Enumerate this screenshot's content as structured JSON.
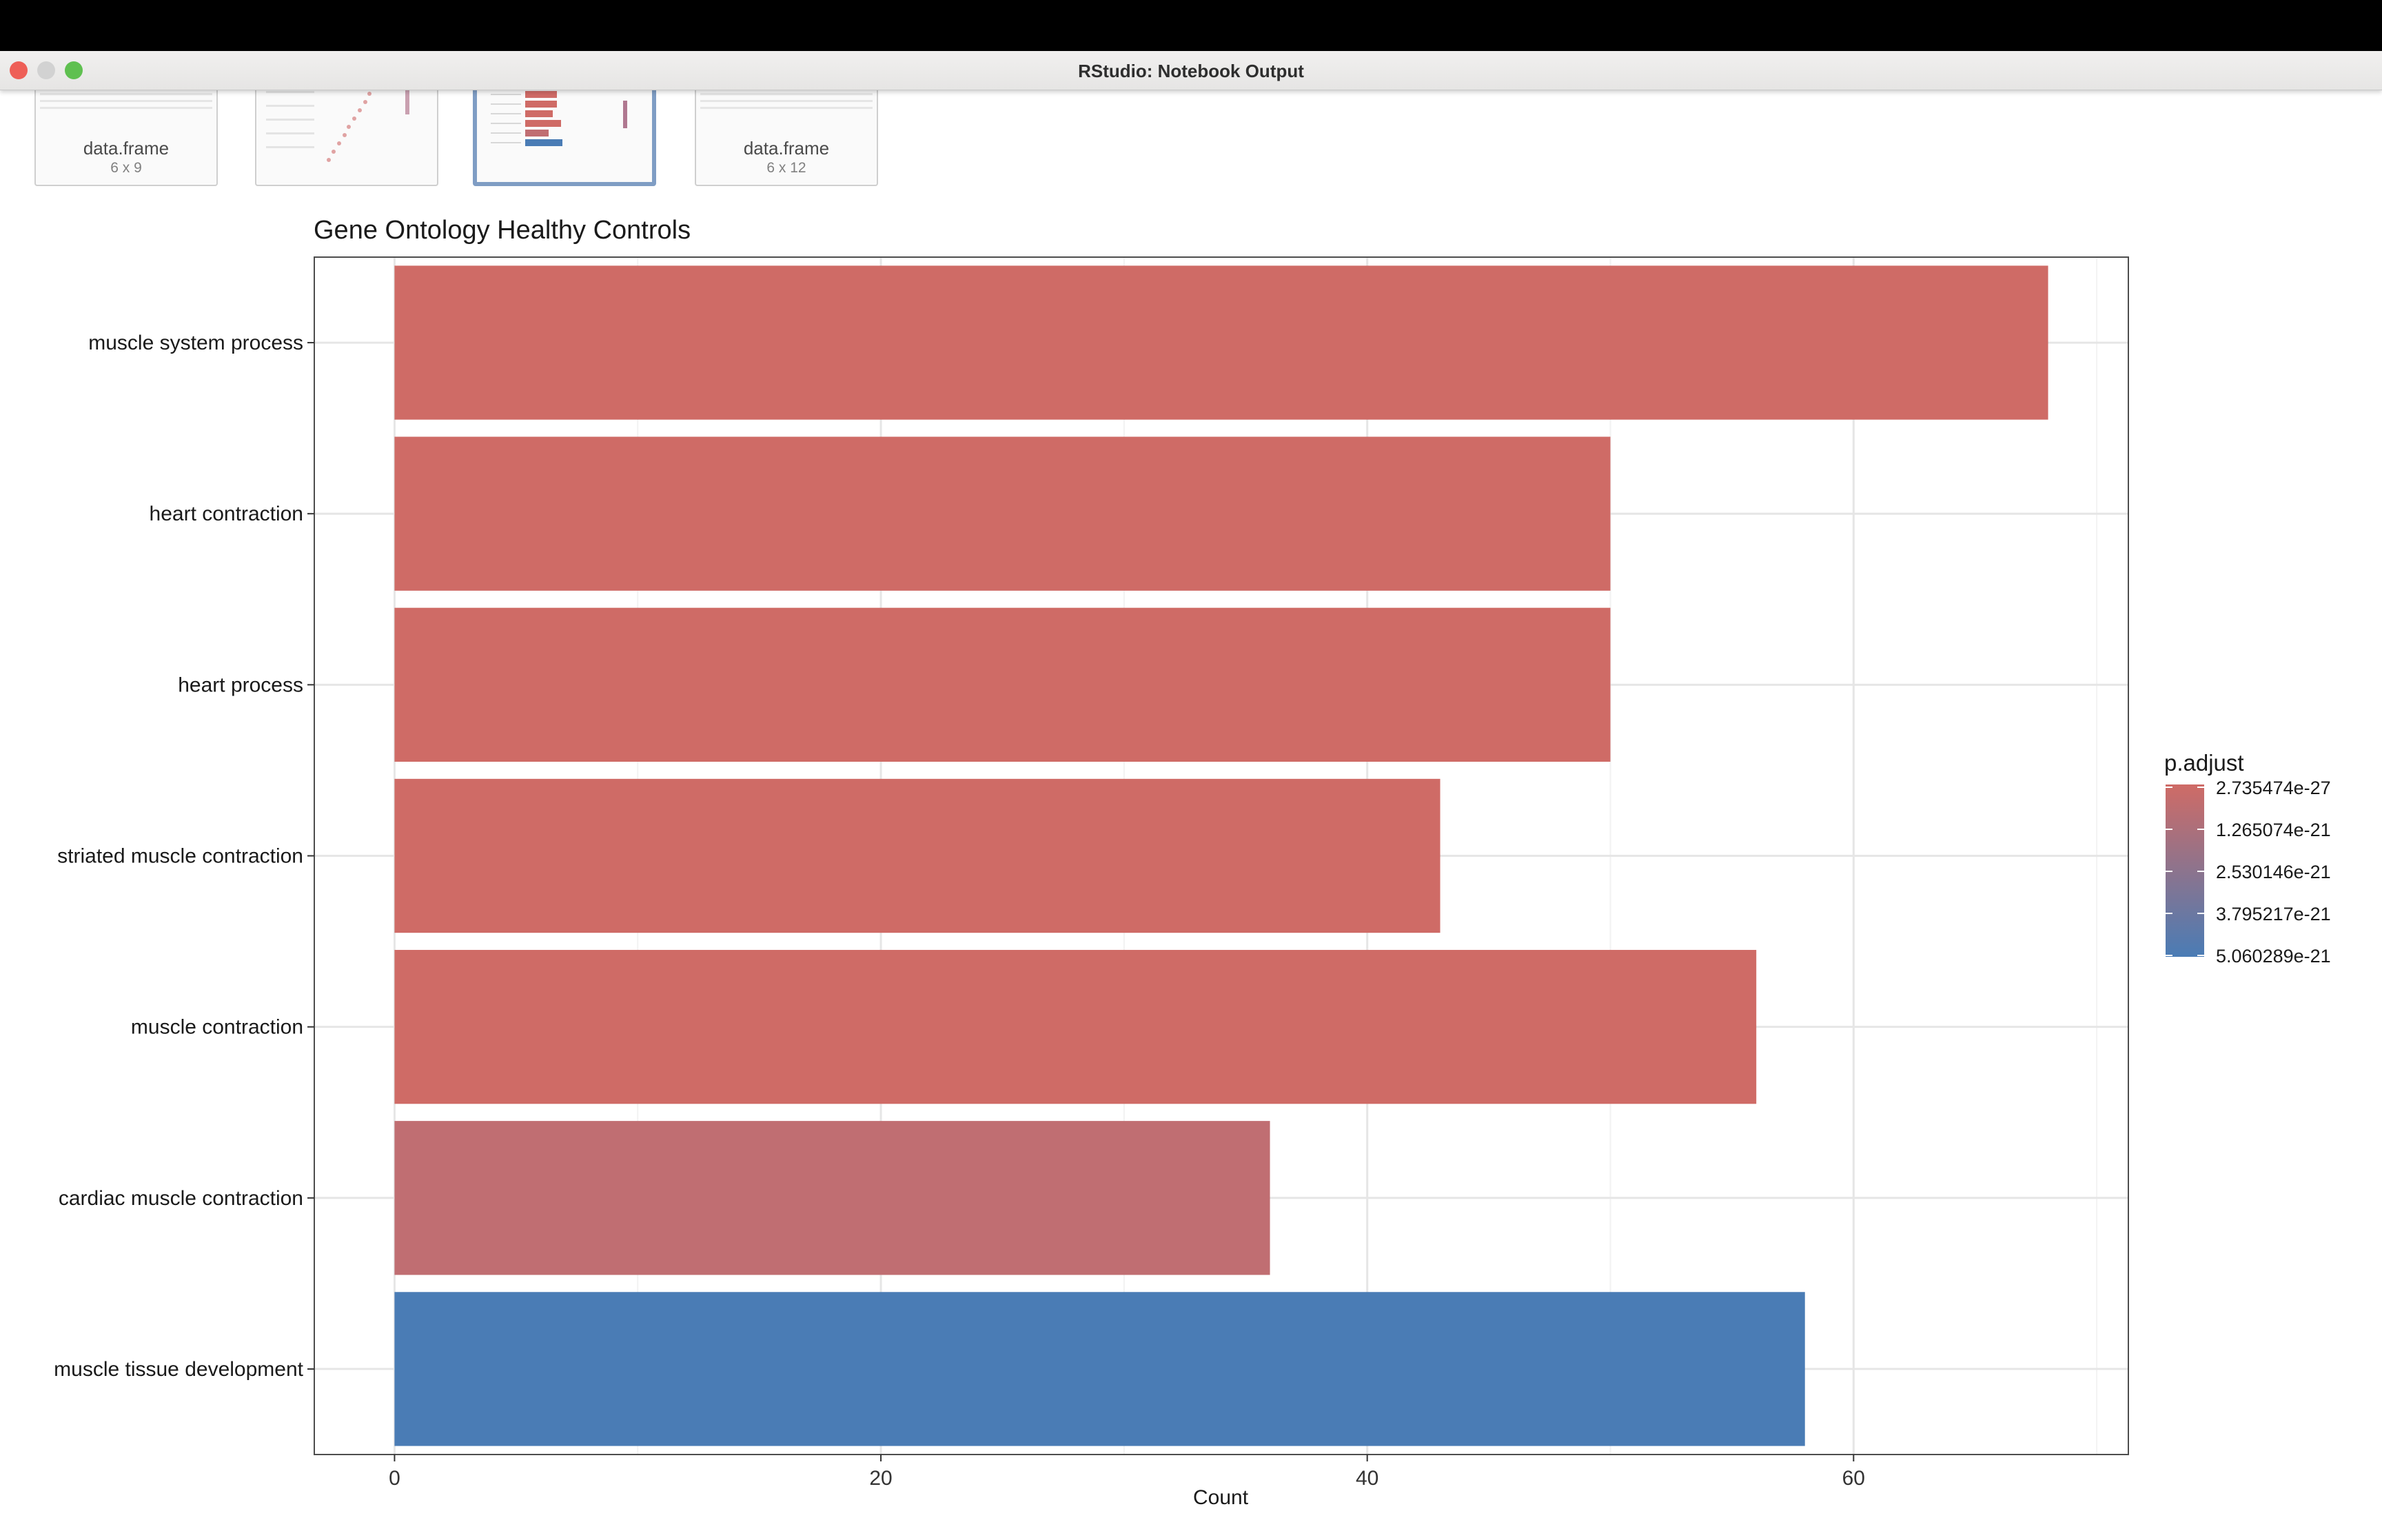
{
  "window": {
    "title": "RStudio: Notebook Output"
  },
  "thumbnails": [
    {
      "label": "data.frame",
      "sub": "6 x 9"
    },
    {
      "label": "",
      "sub": ""
    },
    {
      "label": "",
      "sub": ""
    },
    {
      "label": "data.frame",
      "sub": "6 x 12"
    }
  ],
  "chart_data": {
    "type": "bar",
    "orientation": "horizontal",
    "title": "Gene Ontology Healthy Controls",
    "xlabel": "Count",
    "ylabel": "",
    "xlim": [
      -3.3,
      71.3
    ],
    "x_ticks": [
      0,
      20,
      40,
      60
    ],
    "grid": true,
    "categories": [
      "muscle system process",
      "heart contraction",
      "heart process",
      "striated muscle contraction",
      "muscle contraction",
      "cardiac muscle contraction",
      "muscle tissue development"
    ],
    "values": [
      68,
      50,
      50,
      43,
      56,
      36,
      58
    ],
    "bar_colors": [
      "#cf6b66",
      "#cf6b66",
      "#cf6b66",
      "#cf6b66",
      "#cf6b66",
      "#c06e72",
      "#4a7cb5"
    ],
    "legend": {
      "title": "p.adjust",
      "placement": "right",
      "labels": [
        "2.735474e-27",
        "1.265074e-21",
        "2.530146e-21",
        "3.795217e-21",
        "5.060289e-21"
      ],
      "color_low": "#cf6b66",
      "color_high": "#4a7cb5"
    }
  }
}
